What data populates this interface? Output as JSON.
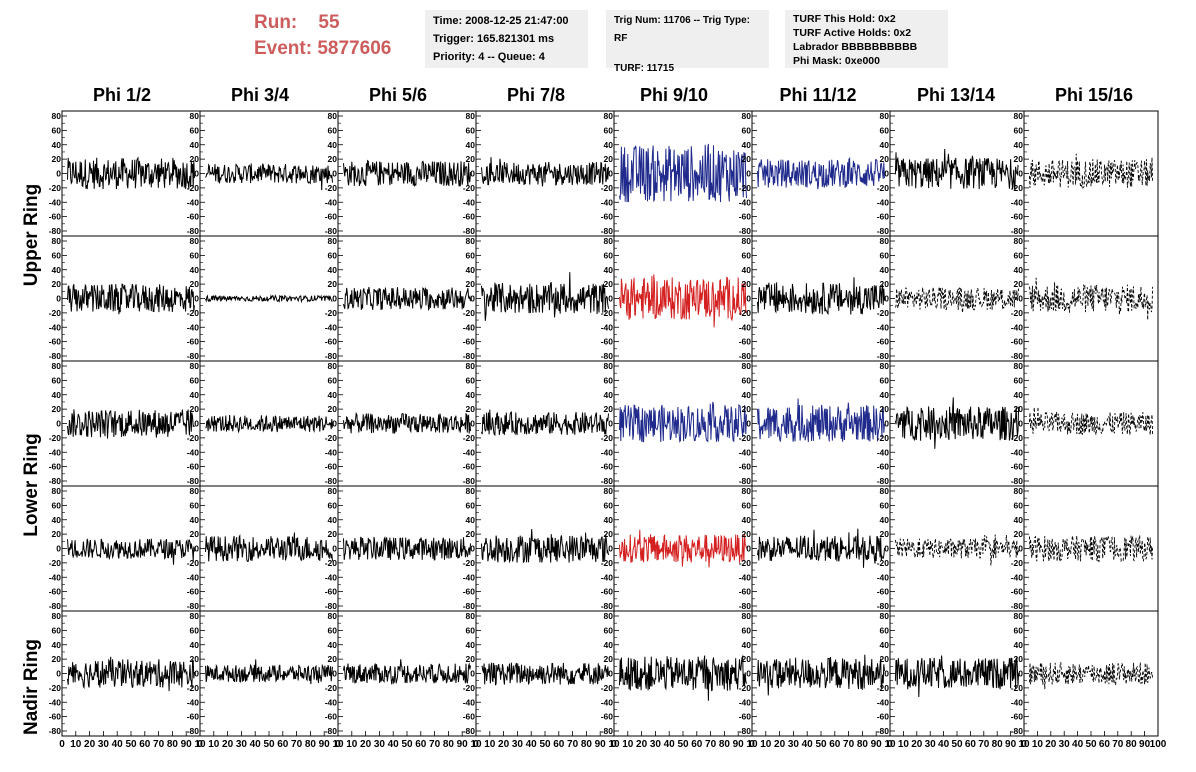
{
  "header": {
    "run_label": "Run:",
    "run_value": "55",
    "event_label": "Event:",
    "event_value": "5877606"
  },
  "info_time": {
    "time": "Time: 2008-12-25 21:47:00",
    "trigger": "Trigger: 165.821301 ms",
    "priority": "Priority: 4 -- Queue: 4"
  },
  "info_trig": {
    "trig": "Trig Num: 11706 -- Trig Type: RF",
    "turf": "TURF: 11715"
  },
  "info_turf": {
    "this_hold": "TURF This Hold: 0x2",
    "active_holds": "TURF Active Holds: 0x2",
    "labrador": "Labrador BBBBBBBBBB",
    "phi_mask": "Phi Mask: 0xe000"
  },
  "colors": {
    "header_red": "#cd5c5c",
    "trace_black": "#000000",
    "trace_blue": "#1f2a8c",
    "trace_red": "#d42020",
    "box_gray": "#efefef"
  },
  "chart_data": {
    "type": "line",
    "columns": [
      "Phi 1/2",
      "Phi 3/4",
      "Phi 5/6",
      "Phi 7/8",
      "Phi 9/10",
      "Phi 11/12",
      "Phi 13/14",
      "Phi 15/16"
    ],
    "rows": [
      "Upper Ring",
      "Upper Ring",
      "Lower Ring",
      "Lower Ring",
      "Nadir Ring"
    ],
    "row_labels": [
      "Upper Ring",
      "Lower Ring",
      "Nadir Ring"
    ],
    "xlim": [
      0,
      100
    ],
    "ylim": [
      -80,
      80
    ],
    "x_ticks": [
      "0",
      "10",
      "20",
      "30",
      "40",
      "50",
      "60",
      "70",
      "80",
      "90",
      "10"
    ],
    "x_ticks_last": [
      "0",
      "10",
      "20",
      "30",
      "40",
      "50",
      "60",
      "70",
      "80",
      "90",
      "100"
    ],
    "y_ticks": [
      "80",
      "60",
      "40",
      "20",
      "0",
      "-20",
      "-40",
      "-60",
      "-80"
    ],
    "panels": [
      [
        "black",
        "black",
        "black",
        "black",
        "blue",
        "blue",
        "black",
        "dashed"
      ],
      [
        "black",
        "black-small",
        "black",
        "black",
        "red",
        "black",
        "dashed",
        "dashed"
      ],
      [
        "black",
        "black",
        "black",
        "black",
        "blue",
        "blue",
        "black",
        "dashed"
      ],
      [
        "black",
        "black",
        "black",
        "black",
        "red",
        "black",
        "dashed",
        "dashed"
      ],
      [
        "black",
        "black",
        "black",
        "black",
        "black",
        "black",
        "black",
        "dashed"
      ]
    ],
    "amplitudes": [
      [
        22,
        14,
        18,
        16,
        40,
        20,
        22,
        20
      ],
      [
        20,
        4,
        16,
        22,
        30,
        22,
        16,
        20
      ],
      [
        20,
        12,
        14,
        16,
        26,
        26,
        24,
        16
      ],
      [
        14,
        18,
        16,
        20,
        20,
        18,
        14,
        18
      ],
      [
        20,
        12,
        14,
        16,
        24,
        22,
        22,
        16
      ]
    ]
  }
}
